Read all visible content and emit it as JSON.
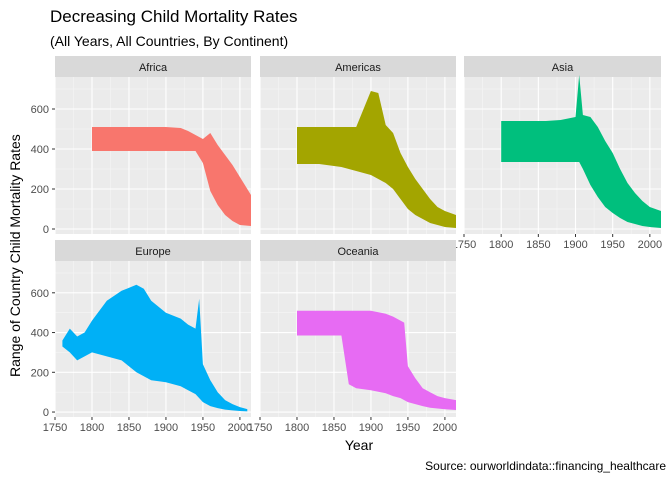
{
  "header": {
    "title": "Decreasing Child Mortality Rates",
    "subtitle": "(All Years, All Countries, By Continent)"
  },
  "caption": "Source: ourworldindata::financing_healthcare",
  "chart_data": {
    "type": "area",
    "title": "Decreasing Child Mortality Rates",
    "subtitle": "(All Years, All Countries, By Continent)",
    "xlabel": "Year",
    "ylabel": "Range of Country Child Mortality Rates",
    "caption": "Source: ourworldindata::financing_healthcare",
    "facet_by": "continent",
    "xlim": [
      1750,
      2015
    ],
    "ylim": [
      -25,
      760
    ],
    "x_ticks": [
      1750,
      1800,
      1850,
      1900,
      1950,
      2000
    ],
    "y_ticks": [
      0,
      200,
      400,
      600
    ],
    "grid": true,
    "series": [
      {
        "name": "Africa",
        "color": "#F8766D",
        "x": [
          1800,
          1830,
          1860,
          1870,
          1880,
          1900,
          1920,
          1930,
          1940,
          1950,
          1960,
          1970,
          1980,
          1990,
          2000,
          2015
        ],
        "ymax": [
          510,
          510,
          510,
          510,
          510,
          510,
          505,
          490,
          470,
          450,
          480,
          420,
          370,
          320,
          260,
          170
        ],
        "ymin": [
          390,
          390,
          390,
          390,
          390,
          390,
          390,
          390,
          390,
          330,
          190,
          120,
          70,
          40,
          20,
          15
        ]
      },
      {
        "name": "Americas",
        "color": "#A3A500",
        "x": [
          1800,
          1830,
          1860,
          1880,
          1900,
          1910,
          1920,
          1930,
          1940,
          1950,
          1960,
          1970,
          1980,
          1990,
          2000,
          2015
        ],
        "ymax": [
          510,
          510,
          510,
          510,
          690,
          680,
          520,
          480,
          380,
          310,
          250,
          200,
          150,
          110,
          90,
          70
        ],
        "ymin": [
          325,
          325,
          310,
          290,
          270,
          250,
          230,
          200,
          150,
          100,
          70,
          50,
          30,
          20,
          10,
          5
        ]
      },
      {
        "name": "Asia",
        "color": "#00BF7D",
        "x": [
          1800,
          1830,
          1860,
          1880,
          1900,
          1905,
          1910,
          1920,
          1930,
          1940,
          1950,
          1960,
          1970,
          1980,
          1990,
          2000,
          2015
        ],
        "ymax": [
          540,
          540,
          540,
          545,
          560,
          770,
          570,
          560,
          510,
          440,
          380,
          300,
          230,
          180,
          140,
          110,
          90
        ],
        "ymin": [
          335,
          335,
          335,
          335,
          335,
          335,
          300,
          220,
          160,
          110,
          80,
          55,
          35,
          25,
          15,
          10,
          5
        ]
      },
      {
        "name": "Europe",
        "color": "#00B0F6",
        "x": [
          1760,
          1770,
          1780,
          1790,
          1800,
          1820,
          1840,
          1860,
          1870,
          1880,
          1900,
          1920,
          1930,
          1940,
          1945,
          1950,
          1960,
          1970,
          1980,
          1990,
          2000,
          2010
        ],
        "ymax": [
          360,
          420,
          380,
          400,
          460,
          560,
          610,
          640,
          620,
          560,
          500,
          470,
          440,
          420,
          570,
          240,
          160,
          100,
          60,
          40,
          25,
          15
        ],
        "ymin": [
          330,
          300,
          260,
          280,
          300,
          280,
          260,
          200,
          180,
          160,
          150,
          130,
          110,
          90,
          70,
          50,
          30,
          20,
          12,
          8,
          5,
          3
        ]
      },
      {
        "name": "Oceania",
        "color": "#E76BF3",
        "x": [
          1800,
          1830,
          1860,
          1870,
          1880,
          1900,
          1920,
          1930,
          1940,
          1945,
          1950,
          1960,
          1970,
          1980,
          1990,
          2000,
          2015
        ],
        "ymax": [
          510,
          510,
          510,
          510,
          510,
          510,
          495,
          480,
          460,
          450,
          230,
          170,
          120,
          100,
          80,
          70,
          60
        ],
        "ymin": [
          385,
          385,
          385,
          140,
          120,
          110,
          95,
          80,
          70,
          60,
          50,
          40,
          30,
          22,
          18,
          14,
          10
        ]
      }
    ]
  }
}
